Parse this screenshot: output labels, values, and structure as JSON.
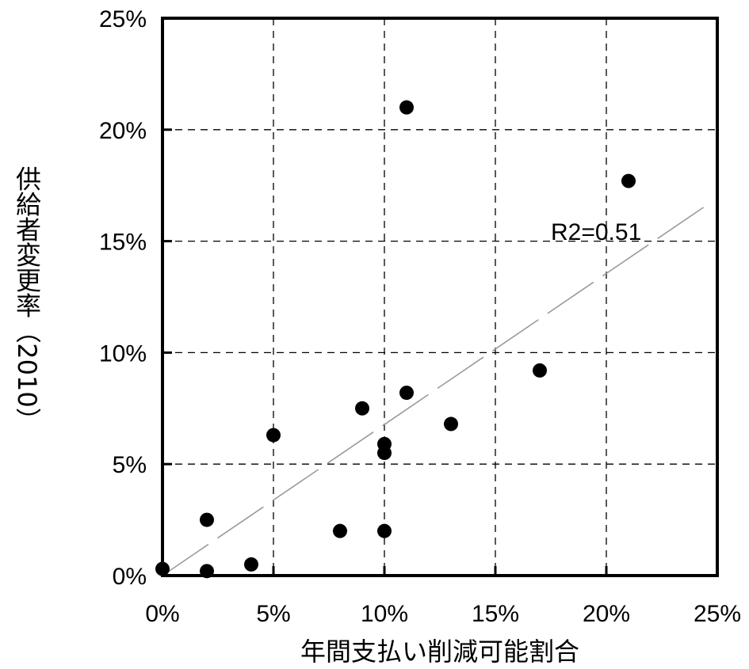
{
  "chart_data": {
    "type": "scatter",
    "xlabel": "年間支払い削減可能割合",
    "ylabel": "供給者変更率（2010）",
    "xlim": [
      0,
      0.25
    ],
    "ylim": [
      0,
      0.25
    ],
    "x_ticks": [
      {
        "value": 0,
        "label": "0%"
      },
      {
        "value": 0.05,
        "label": "5%"
      },
      {
        "value": 0.1,
        "label": "10%"
      },
      {
        "value": 0.15,
        "label": "15%"
      },
      {
        "value": 0.2,
        "label": "20%"
      },
      {
        "value": 0.25,
        "label": "25%"
      }
    ],
    "y_ticks": [
      {
        "value": 0,
        "label": "0%"
      },
      {
        "value": 0.05,
        "label": "5%"
      },
      {
        "value": 0.1,
        "label": "10%"
      },
      {
        "value": 0.15,
        "label": "15%"
      },
      {
        "value": 0.2,
        "label": "20%"
      },
      {
        "value": 0.25,
        "label": "25%"
      }
    ],
    "grid": true,
    "points": [
      {
        "x": 0.0,
        "y": 0.003
      },
      {
        "x": 0.02,
        "y": 0.002
      },
      {
        "x": 0.02,
        "y": 0.025
      },
      {
        "x": 0.04,
        "y": 0.005
      },
      {
        "x": 0.05,
        "y": 0.063
      },
      {
        "x": 0.08,
        "y": 0.02
      },
      {
        "x": 0.09,
        "y": 0.075
      },
      {
        "x": 0.1,
        "y": 0.02
      },
      {
        "x": 0.1,
        "y": 0.055
      },
      {
        "x": 0.1,
        "y": 0.059
      },
      {
        "x": 0.11,
        "y": 0.082
      },
      {
        "x": 0.11,
        "y": 0.21
      },
      {
        "x": 0.13,
        "y": 0.068
      },
      {
        "x": 0.17,
        "y": 0.092
      },
      {
        "x": 0.21,
        "y": 0.177
      }
    ],
    "trendline": {
      "type": "linear",
      "x": [
        0,
        0.245
      ],
      "y": [
        0,
        0.166
      ]
    },
    "annotation": "R2=0.51"
  }
}
